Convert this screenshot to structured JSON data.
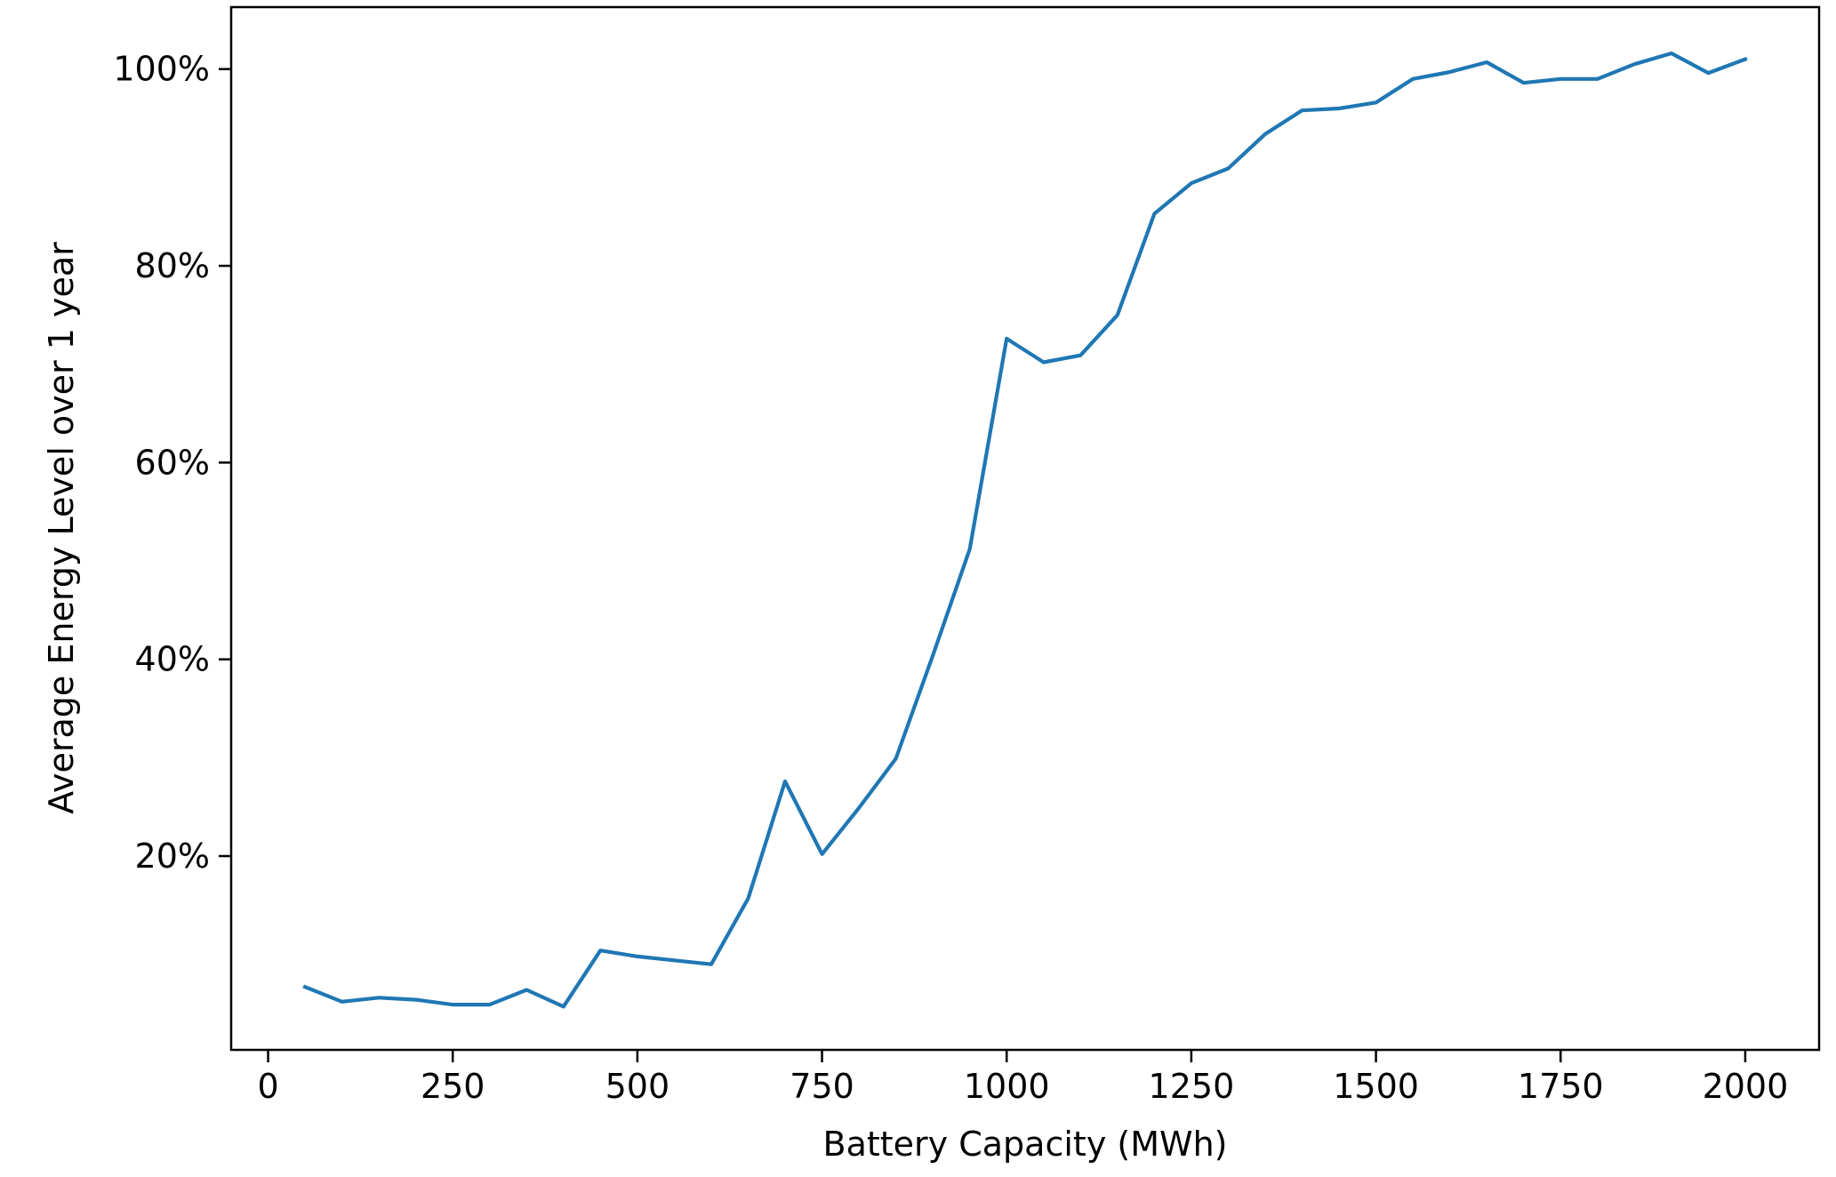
{
  "chart_data": {
    "type": "line",
    "title": "",
    "xlabel": "Battery Capacity (MWh)",
    "ylabel": "Average Energy Level over 1 year",
    "xlim": [
      -50,
      2100
    ],
    "ylim": [
      0.003,
      1.063
    ],
    "x_ticks": [
      0,
      250,
      500,
      750,
      1000,
      1250,
      1500,
      1750,
      2000
    ],
    "x_tick_labels": [
      "0",
      "250",
      "500",
      "750",
      "1000",
      "1250",
      "1500",
      "1750",
      "2000"
    ],
    "y_ticks": [
      0.2,
      0.4,
      0.6,
      0.8,
      1.0
    ],
    "y_tick_labels": [
      "20%",
      "40%",
      "60%",
      "80%",
      "100%"
    ],
    "grid": false,
    "series": [
      {
        "color": "#1f77b4",
        "x": [
          50,
          100,
          150,
          200,
          250,
          300,
          350,
          400,
          450,
          500,
          550,
          600,
          650,
          700,
          750,
          800,
          850,
          900,
          950,
          1000,
          1050,
          1100,
          1150,
          1200,
          1250,
          1300,
          1350,
          1400,
          1450,
          1500,
          1550,
          1600,
          1650,
          1700,
          1750,
          1800,
          1850,
          1900,
          1950,
          2000
        ],
        "y": [
          0.067,
          0.052,
          0.056,
          0.054,
          0.049,
          0.049,
          0.064,
          0.047,
          0.104,
          0.098,
          0.094,
          0.09,
          0.157,
          0.276,
          0.202,
          0.249,
          0.299,
          0.404,
          0.512,
          0.726,
          0.702,
          0.709,
          0.75,
          0.853,
          0.884,
          0.899,
          0.934,
          0.958,
          0.96,
          0.966,
          0.99,
          0.997,
          1.007,
          0.986,
          0.99,
          0.99,
          1.005,
          1.016,
          0.996,
          1.01
        ]
      }
    ]
  }
}
